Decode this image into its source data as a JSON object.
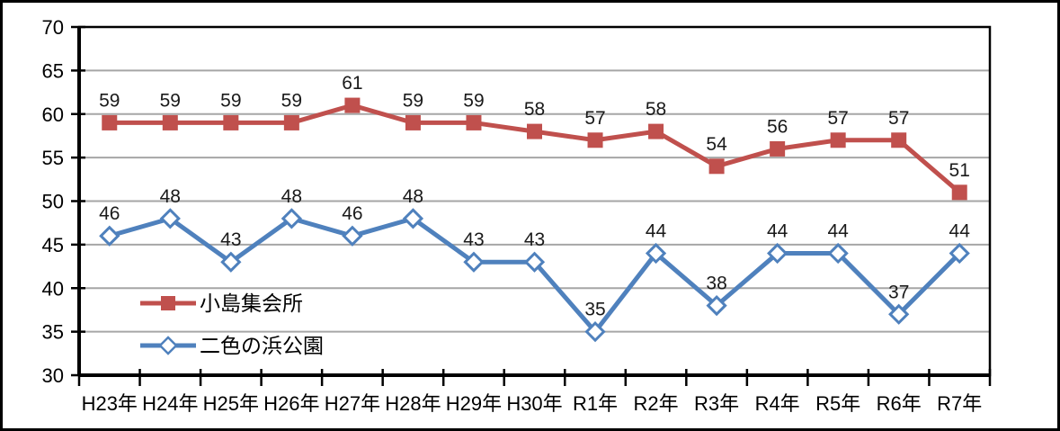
{
  "chart_data": {
    "type": "line",
    "categories": [
      "H23年",
      "H24年",
      "H25年",
      "H26年",
      "H27年",
      "H28年",
      "H29年",
      "H30年",
      "R1年",
      "R2年",
      "R3年",
      "R4年",
      "R5年",
      "R6年",
      "R7年"
    ],
    "series": [
      {
        "name": "小島集会所",
        "values": [
          59,
          59,
          59,
          59,
          61,
          59,
          59,
          58,
          57,
          58,
          54,
          56,
          57,
          57,
          51
        ],
        "color": "#C0504D",
        "marker": "square",
        "marker_fill": "#C0504D"
      },
      {
        "name": "二色の浜公園",
        "values": [
          46,
          48,
          43,
          48,
          46,
          48,
          43,
          43,
          35,
          44,
          38,
          44,
          44,
          37,
          44
        ],
        "color": "#4F81BD",
        "marker": "diamond",
        "marker_fill": "#FFFFFF"
      }
    ],
    "title": "",
    "xlabel": "",
    "ylabel": "",
    "ylim": [
      30,
      70
    ],
    "yticks": [
      30,
      35,
      40,
      45,
      50,
      55,
      60,
      65,
      70
    ],
    "grid": true,
    "data_labels": true,
    "legend_position": "inside-left-bottom",
    "colors": {
      "background": "#FFFFFF",
      "outer_border": "#000000",
      "plot_border": "#000000",
      "axis": "#000000",
      "gridline": "#A6A6A6",
      "tick_label": "#000000",
      "data_label": "#1A1A1A"
    }
  }
}
